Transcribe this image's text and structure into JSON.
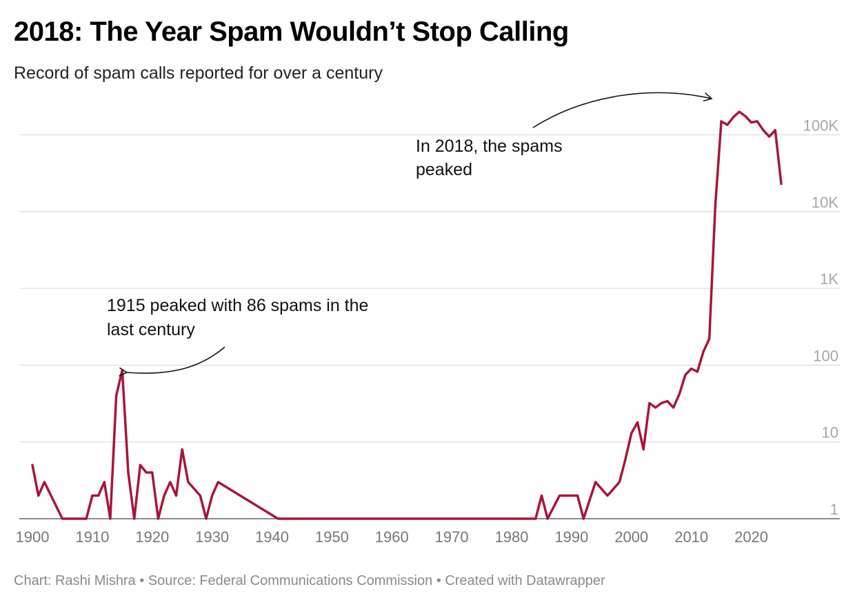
{
  "title": "2018: The Year Spam Wouldn’t Stop Calling",
  "subtitle": "Record of spam calls reported for over a century",
  "footer": "Chart: Rashi Mishra • Source: Federal Communications Commission • Created with Datawrapper",
  "colors": {
    "line": "#a8153a",
    "grid": "#dddddd",
    "axis_text": "#8a8a8a",
    "baseline": "#444444"
  },
  "chart_data": {
    "type": "line",
    "yscale": "log",
    "xlim": [
      1900,
      2025
    ],
    "ylim": [
      1,
      200000
    ],
    "x_ticks": [
      1900,
      1910,
      1920,
      1930,
      1940,
      1950,
      1960,
      1970,
      1980,
      1990,
      2000,
      2010,
      2020
    ],
    "y_ticks": [
      {
        "value": 1,
        "label": "1"
      },
      {
        "value": 10,
        "label": "10"
      },
      {
        "value": 100,
        "label": "100"
      },
      {
        "value": 1000,
        "label": "1K"
      },
      {
        "value": 10000,
        "label": "10K"
      },
      {
        "value": 100000,
        "label": "100K"
      }
    ],
    "series": [
      {
        "points": [
          [
            1900,
            5
          ],
          [
            1901,
            2
          ],
          [
            1902,
            3
          ],
          [
            1905,
            1
          ],
          [
            1909,
            1
          ],
          [
            1910,
            2
          ],
          [
            1911,
            2
          ],
          [
            1912,
            3
          ],
          [
            1913,
            1
          ],
          [
            1914,
            40
          ],
          [
            1915,
            86
          ],
          [
            1916,
            4
          ],
          [
            1917,
            1
          ],
          [
            1918,
            5
          ],
          [
            1919,
            4
          ],
          [
            1920,
            4
          ],
          [
            1921,
            1
          ],
          [
            1922,
            2
          ],
          [
            1923,
            3
          ],
          [
            1924,
            2
          ],
          [
            1925,
            8
          ],
          [
            1926,
            3
          ],
          [
            1928,
            2
          ],
          [
            1929,
            1
          ],
          [
            1930,
            2
          ],
          [
            1931,
            3
          ],
          [
            1941,
            1
          ],
          [
            1984,
            1
          ],
          [
            1985,
            2
          ],
          [
            1986,
            1
          ],
          [
            1988,
            2
          ],
          [
            1991,
            2
          ],
          [
            1992,
            1
          ],
          [
            1994,
            3
          ],
          [
            1996,
            2
          ],
          [
            1998,
            3
          ],
          [
            1999,
            6
          ],
          [
            2000,
            13
          ],
          [
            2001,
            18
          ],
          [
            2002,
            8
          ],
          [
            2003,
            32
          ],
          [
            2004,
            28
          ],
          [
            2005,
            32
          ],
          [
            2006,
            34
          ],
          [
            2007,
            28
          ],
          [
            2008,
            42
          ],
          [
            2009,
            75
          ],
          [
            2010,
            90
          ],
          [
            2011,
            82
          ],
          [
            2012,
            150
          ],
          [
            2013,
            220
          ],
          [
            2014,
            12000
          ],
          [
            2015,
            150000
          ],
          [
            2016,
            135000
          ],
          [
            2017,
            170000
          ],
          [
            2018,
            200000
          ],
          [
            2019,
            175000
          ],
          [
            2020,
            145000
          ],
          [
            2021,
            150000
          ],
          [
            2022,
            115000
          ],
          [
            2023,
            95000
          ],
          [
            2024,
            115000
          ],
          [
            2025,
            23000
          ]
        ]
      }
    ],
    "annotations": [
      {
        "id": "peak1915",
        "text_lines": [
          "1915 peaked with 86 spams in the",
          "last century"
        ],
        "x": 1915,
        "y": 86
      },
      {
        "id": "peak2018",
        "text_lines": [
          "In 2018, the spams",
          "peaked"
        ],
        "x": 2018,
        "y": 200000
      }
    ]
  }
}
